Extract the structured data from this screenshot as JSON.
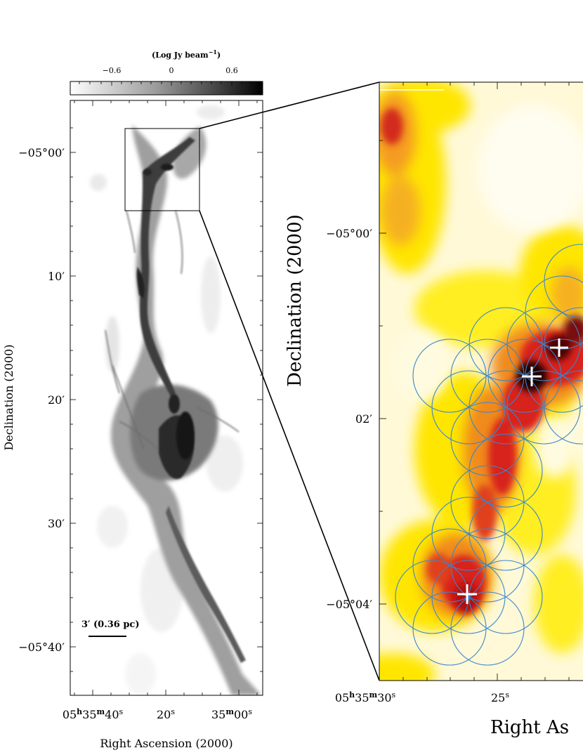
{
  "colorbar": {
    "unit": "(Log Jy beam",
    "unit_sup": "−1",
    "unit_close": ")",
    "ticks": [
      "−0.6",
      "0",
      "0.6"
    ]
  },
  "left_panel": {
    "dec_ticks": [
      "−05°00′",
      "10′",
      "20′",
      "30′",
      "−05°40′"
    ],
    "ra_ticks": [
      {
        "h": "05",
        "hu": "h",
        "m": "35",
        "mu": "m",
        "s": "40",
        "su": "s"
      },
      {
        "s": "20",
        "su": "s"
      },
      {
        "m": "35",
        "mu": "m",
        "s": "00",
        "su": "s"
      }
    ],
    "xlabel": "Right Ascension (2000)",
    "ylabel": "Declination (2000)",
    "scalebar": "3′ (0.36 pc)"
  },
  "right_panel": {
    "ylabel": "Declination (2000)",
    "xlabel_visible": "Right As",
    "dec_ticks": [
      "−05°00′",
      "02′",
      "−05°04′"
    ],
    "ra_ticks": [
      {
        "h": "05",
        "hu": "h",
        "m": "35",
        "mu": "m",
        "s": "30",
        "su": "s"
      },
      {
        "s": "25",
        "su": "s"
      }
    ]
  },
  "colors": {
    "heat_dark": "#1a0000",
    "heat_red": "#d8221a",
    "heat_orange": "#f0801a",
    "heat_yellow": "#ffee22",
    "pointing_circle": "#3a86cc",
    "marker": "#ffffff"
  }
}
